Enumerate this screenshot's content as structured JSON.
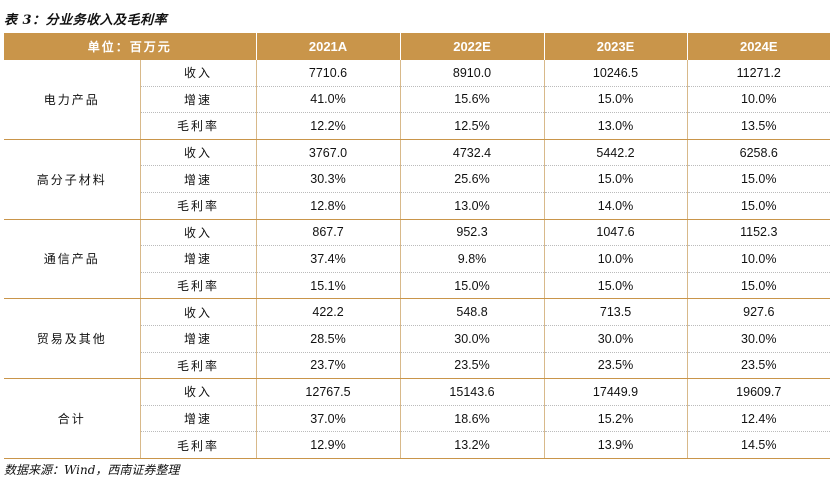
{
  "caption": "表 3：分业务收入及毛利率",
  "header": {
    "unit_label": "单位：百万元",
    "years": [
      "2021A",
      "2022E",
      "2023E",
      "2024E"
    ]
  },
  "segments": [
    {
      "name": "电力产品",
      "rows": [
        {
          "metric": "收入",
          "values": [
            "7710.6",
            "8910.0",
            "10246.5",
            "11271.2"
          ]
        },
        {
          "metric": "增速",
          "values": [
            "41.0%",
            "15.6%",
            "15.0%",
            "10.0%"
          ]
        },
        {
          "metric": "毛利率",
          "values": [
            "12.2%",
            "12.5%",
            "13.0%",
            "13.5%"
          ]
        }
      ]
    },
    {
      "name": "高分子材料",
      "rows": [
        {
          "metric": "收入",
          "values": [
            "3767.0",
            "4732.4",
            "5442.2",
            "6258.6"
          ]
        },
        {
          "metric": "增速",
          "values": [
            "30.3%",
            "25.6%",
            "15.0%",
            "15.0%"
          ]
        },
        {
          "metric": "毛利率",
          "values": [
            "12.8%",
            "13.0%",
            "14.0%",
            "15.0%"
          ]
        }
      ]
    },
    {
      "name": "通信产品",
      "rows": [
        {
          "metric": "收入",
          "values": [
            "867.7",
            "952.3",
            "1047.6",
            "1152.3"
          ]
        },
        {
          "metric": "增速",
          "values": [
            "37.4%",
            "9.8%",
            "10.0%",
            "10.0%"
          ]
        },
        {
          "metric": "毛利率",
          "values": [
            "15.1%",
            "15.0%",
            "15.0%",
            "15.0%"
          ]
        }
      ]
    },
    {
      "name": "贸易及其他",
      "rows": [
        {
          "metric": "收入",
          "values": [
            "422.2",
            "548.8",
            "713.5",
            "927.6"
          ]
        },
        {
          "metric": "增速",
          "values": [
            "28.5%",
            "30.0%",
            "30.0%",
            "30.0%"
          ]
        },
        {
          "metric": "毛利率",
          "values": [
            "23.7%",
            "23.5%",
            "23.5%",
            "23.5%"
          ]
        }
      ]
    },
    {
      "name": "合计",
      "rows": [
        {
          "metric": "收入",
          "values": [
            "12767.5",
            "15143.6",
            "17449.9",
            "19609.7"
          ]
        },
        {
          "metric": "增速",
          "values": [
            "37.0%",
            "18.6%",
            "15.2%",
            "12.4%"
          ]
        },
        {
          "metric": "毛利率",
          "values": [
            "12.9%",
            "13.2%",
            "13.9%",
            "14.5%"
          ]
        }
      ]
    }
  ],
  "source": "数据来源：Wind，西南证券整理"
}
